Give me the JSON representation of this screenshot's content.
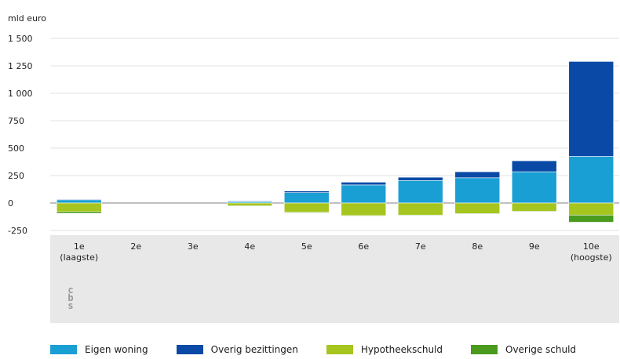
{
  "chart_data": {
    "type": "bar",
    "stacked": true,
    "unit_label": "mld euro",
    "categories": [
      [
        "1e",
        "(laagste)"
      ],
      [
        "2e"
      ],
      [
        "3e"
      ],
      [
        "4e"
      ],
      [
        "5e"
      ],
      [
        "6e"
      ],
      [
        "7e"
      ],
      [
        "8e"
      ],
      [
        "9e"
      ],
      [
        "10e",
        "(hoogste)"
      ]
    ],
    "yticks": [
      "1 500",
      "1 250",
      "1 000",
      "750",
      "500",
      "250",
      "0",
      "-250"
    ],
    "ytick_values": [
      1500,
      1250,
      1000,
      750,
      500,
      250,
      0,
      -250
    ],
    "ylim": [
      -250,
      1600
    ],
    "grid": true,
    "legend_position": "bottom",
    "series": [
      {
        "name": "Eigen woning",
        "color": "#1a9fd4",
        "values": [
          30,
          0,
          0,
          15,
          95,
          165,
          205,
          230,
          285,
          425
        ]
      },
      {
        "name": "Overig bezittingen",
        "color": "#0a4aa6",
        "values": [
          5,
          0,
          0,
          3,
          15,
          25,
          30,
          55,
          100,
          865
        ]
      },
      {
        "name": "Hypotheekschuld",
        "color": "#a6c51e",
        "values": [
          -80,
          0,
          0,
          -25,
          -85,
          -115,
          -110,
          -95,
          -75,
          -110
        ]
      },
      {
        "name": "Overige schuld",
        "color": "#4a9a1e",
        "values": [
          -15,
          0,
          0,
          -5,
          -5,
          -5,
          -5,
          -5,
          -5,
          -65
        ]
      }
    ]
  },
  "logo": {
    "name": "cbs-logo",
    "text": "cbs"
  }
}
